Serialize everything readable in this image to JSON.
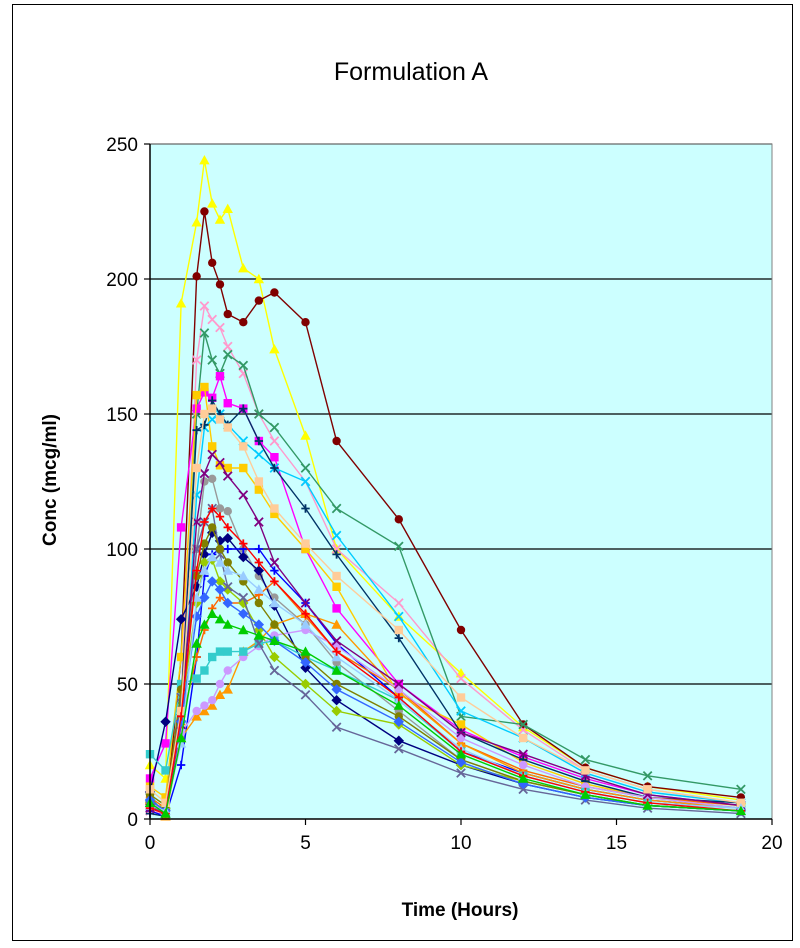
{
  "chart_data": {
    "type": "line",
    "title": "Formulation A",
    "xlabel": "Time (Hours)",
    "ylabel": "Conc (mcg/ml)",
    "xlim": [
      0,
      20
    ],
    "ylim": [
      0,
      250
    ],
    "x_ticks": [
      "0",
      "5",
      "10",
      "15",
      "20"
    ],
    "y_ticks": [
      "0",
      "50",
      "100",
      "150",
      "200",
      "250"
    ],
    "grid": "horizontal major lines",
    "plot_background": "#ccffff",
    "legend": "none",
    "series": [
      {
        "color": "#ffff00",
        "marker": "triangle",
        "x": [
          0,
          0.5,
          1,
          1.5,
          1.75,
          2,
          2.25,
          2.5,
          3,
          3.5,
          4,
          5,
          6,
          8,
          10,
          12,
          14,
          16,
          19
        ],
        "y": [
          20,
          15,
          191,
          221,
          244,
          228,
          222,
          226,
          204,
          200,
          174,
          142,
          100,
          75,
          54,
          34,
          19,
          12,
          7
        ]
      },
      {
        "color": "#800000",
        "marker": "circle",
        "x": [
          0,
          0.5,
          1,
          1.5,
          1.75,
          2,
          2.25,
          2.5,
          3,
          3.5,
          4,
          5,
          6,
          8,
          10,
          12,
          14,
          16,
          19
        ],
        "y": [
          5,
          1,
          60,
          201,
          225,
          206,
          198,
          187,
          184,
          192,
          195,
          184,
          140,
          111,
          70,
          35,
          19,
          12,
          8
        ]
      },
      {
        "color": "#ff99cc",
        "marker": "x",
        "x": [
          0,
          0.5,
          1,
          1.5,
          1.75,
          2,
          2.25,
          2.5,
          3,
          3.5,
          4,
          5,
          6,
          8,
          10,
          12,
          14,
          16,
          19
        ],
        "y": [
          3,
          2,
          45,
          170,
          190,
          185,
          182,
          175,
          165,
          150,
          140,
          125,
          100,
          80,
          52,
          33,
          18,
          11,
          6
        ]
      },
      {
        "color": "#339966",
        "marker": "x",
        "x": [
          0,
          0.5,
          1,
          1.5,
          1.75,
          2,
          2.25,
          2.5,
          3,
          3.5,
          4,
          5,
          6,
          8,
          10,
          12,
          14,
          16,
          19
        ],
        "y": [
          8,
          2,
          40,
          150,
          180,
          170,
          165,
          172,
          168,
          150,
          145,
          130,
          115,
          101,
          38,
          35,
          22,
          16,
          11
        ]
      },
      {
        "color": "#ff00ff",
        "marker": "square",
        "x": [
          0,
          0.5,
          1,
          1.5,
          1.75,
          2,
          2.25,
          2.5,
          3,
          3.5,
          4,
          5,
          6,
          8,
          10,
          12,
          14,
          16,
          19
        ],
        "y": [
          15,
          28,
          108,
          152,
          158,
          156,
          164,
          154,
          152,
          140,
          134,
          100,
          78,
          50,
          33,
          23,
          15,
          9,
          5
        ]
      },
      {
        "color": "#ffcc00",
        "marker": "square",
        "x": [
          0,
          0.5,
          1,
          1.5,
          1.75,
          2,
          2.25,
          2.5,
          3,
          3.5,
          4,
          5,
          6,
          8,
          10,
          12,
          14,
          16,
          19
        ],
        "y": [
          12,
          8,
          60,
          157,
          160,
          138,
          131,
          130,
          130,
          122,
          113,
          100,
          86,
          46,
          35,
          21,
          13,
          8,
          4
        ]
      },
      {
        "color": "#00ccff",
        "marker": "x",
        "x": [
          0,
          0.5,
          1,
          1.5,
          1.75,
          2,
          2.25,
          2.5,
          3,
          3.5,
          4,
          5,
          6,
          8,
          10,
          12,
          14,
          16,
          19
        ],
        "y": [
          6,
          3,
          30,
          120,
          145,
          148,
          150,
          146,
          140,
          135,
          130,
          125,
          105,
          75,
          40,
          30,
          17,
          10,
          6
        ]
      },
      {
        "color": "#003366",
        "marker": "plus",
        "x": [
          0,
          0.5,
          1,
          1.5,
          1.75,
          2,
          2.25,
          2.5,
          3,
          3.5,
          4,
          5,
          6,
          8,
          10,
          12,
          14,
          16,
          19
        ],
        "y": [
          2,
          1,
          43,
          144,
          146,
          155,
          150,
          146,
          152,
          140,
          130,
          115,
          98,
          67,
          32,
          22,
          14,
          8,
          6
        ]
      },
      {
        "color": "#999999",
        "marker": "circle",
        "x": [
          0,
          0.5,
          1,
          1.5,
          1.75,
          2,
          2.25,
          2.5,
          3,
          3.5,
          4,
          5,
          6,
          8,
          10,
          12,
          14,
          16,
          19
        ],
        "y": [
          4,
          2,
          30,
          100,
          125,
          126,
          115,
          114,
          100,
          90,
          82,
          72,
          58,
          40,
          22,
          14,
          9,
          5,
          3
        ]
      },
      {
        "color": "#000080",
        "marker": "diamond",
        "x": [
          0,
          0.5,
          1,
          1.5,
          1.75,
          2,
          2.25,
          2.5,
          3,
          3.5,
          4,
          5,
          6,
          8,
          10,
          12,
          14,
          16,
          19
        ],
        "y": [
          10,
          36,
          74,
          86,
          98,
          106,
          103,
          104,
          97,
          92,
          79,
          56,
          44,
          29,
          20,
          13,
          8,
          5,
          3
        ]
      },
      {
        "color": "#0000ff",
        "marker": "plus",
        "x": [
          0,
          0.5,
          1,
          1.5,
          1.75,
          2,
          2.25,
          2.5,
          3,
          3.5,
          4,
          5,
          6,
          8,
          10,
          12,
          14,
          16,
          19
        ],
        "y": [
          3,
          1,
          20,
          60,
          90,
          98,
          100,
          100,
          100,
          100,
          92,
          80,
          65,
          45,
          25,
          17,
          11,
          7,
          4
        ]
      },
      {
        "color": "#ff6600",
        "marker": "plus",
        "x": [
          0,
          0.5,
          1,
          1.5,
          1.75,
          2,
          2.25,
          2.5,
          3,
          3.5,
          4,
          5,
          6,
          8,
          10,
          12,
          14,
          16,
          19
        ],
        "y": [
          8,
          4,
          35,
          60,
          70,
          78,
          82,
          80,
          80,
          83,
          88,
          75,
          62,
          48,
          28,
          18,
          12,
          8,
          5
        ]
      },
      {
        "color": "#99cc00",
        "marker": "diamond",
        "x": [
          0,
          0.5,
          1,
          1.5,
          1.75,
          2,
          2.25,
          2.5,
          3,
          3.5,
          4,
          5,
          6,
          8,
          10,
          12,
          14,
          16,
          19
        ],
        "y": [
          6,
          4,
          40,
          80,
          95,
          96,
          88,
          85,
          80,
          70,
          60,
          50,
          40,
          35,
          20,
          14,
          9,
          5,
          3
        ]
      },
      {
        "color": "#ff9900",
        "marker": "triangle",
        "x": [
          0,
          0.5,
          1,
          1.5,
          1.75,
          2,
          2.25,
          2.5,
          3,
          3.5,
          4,
          5,
          6,
          8,
          10,
          12,
          14,
          16,
          19
        ],
        "y": [
          7,
          1,
          30,
          38,
          40,
          42,
          46,
          48,
          62,
          66,
          72,
          76,
          72,
          47,
          28,
          17,
          11,
          7,
          4
        ]
      },
      {
        "color": "#cc99ff",
        "marker": "circle",
        "x": [
          0,
          0.5,
          1,
          1.5,
          1.75,
          2,
          2.25,
          2.5,
          3,
          3.5,
          4,
          5,
          6,
          8,
          10,
          12,
          14,
          16,
          19
        ],
        "y": [
          6,
          3,
          32,
          40,
          42,
          44,
          50,
          55,
          60,
          64,
          68,
          70,
          64,
          48,
          30,
          20,
          12,
          8,
          4
        ]
      },
      {
        "color": "#33cccc",
        "marker": "square",
        "x": [
          0,
          0.5,
          1,
          1.5,
          1.75,
          2,
          2.25,
          2.5,
          3,
          3.5,
          4,
          5,
          6,
          8,
          10,
          12,
          14,
          16,
          19
        ],
        "y": [
          24,
          18,
          50,
          52,
          55,
          60,
          62,
          62,
          62,
          65,
          66,
          60,
          55,
          44,
          25,
          16,
          10,
          6,
          4
        ]
      },
      {
        "color": "#666699",
        "marker": "x",
        "x": [
          0,
          0.5,
          1,
          1.5,
          1.75,
          2,
          2.25,
          2.5,
          3,
          3.5,
          4,
          5,
          6,
          8,
          10,
          12,
          14,
          16,
          19
        ],
        "y": [
          5,
          2,
          45,
          100,
          110,
          115,
          98,
          86,
          82,
          65,
          55,
          46,
          34,
          26,
          17,
          11,
          7,
          4,
          2
        ]
      },
      {
        "color": "#808000",
        "marker": "circle",
        "x": [
          0,
          0.5,
          1,
          1.5,
          1.75,
          2,
          2.25,
          2.5,
          3,
          3.5,
          4,
          5,
          6,
          8,
          10,
          12,
          14,
          16,
          19
        ],
        "y": [
          9,
          5,
          48,
          90,
          102,
          108,
          100,
          95,
          88,
          80,
          72,
          60,
          50,
          38,
          22,
          14,
          9,
          5,
          3
        ]
      },
      {
        "color": "#800080",
        "marker": "x",
        "x": [
          0,
          0.5,
          1,
          1.5,
          1.75,
          2,
          2.25,
          2.5,
          3,
          3.5,
          4,
          5,
          6,
          8,
          10,
          12,
          14,
          16,
          19
        ],
        "y": [
          4,
          2,
          35,
          110,
          128,
          135,
          132,
          127,
          120,
          110,
          95,
          80,
          66,
          50,
          32,
          24,
          16,
          9,
          5
        ]
      },
      {
        "color": "#3366ff",
        "marker": "diamond",
        "x": [
          0,
          0.5,
          1,
          1.5,
          1.75,
          2,
          2.25,
          2.5,
          3,
          3.5,
          4,
          5,
          6,
          8,
          10,
          12,
          14,
          16,
          19
        ],
        "y": [
          7,
          3,
          36,
          75,
          82,
          88,
          85,
          80,
          76,
          72,
          66,
          58,
          48,
          36,
          21,
          13,
          8,
          5,
          3
        ]
      },
      {
        "color": "#ffcc99",
        "marker": "square",
        "x": [
          0,
          0.5,
          1,
          1.5,
          1.75,
          2,
          2.25,
          2.5,
          3,
          3.5,
          4,
          5,
          6,
          8,
          10,
          12,
          14,
          16,
          19
        ],
        "y": [
          11,
          6,
          40,
          130,
          150,
          152,
          148,
          145,
          138,
          125,
          115,
          102,
          90,
          70,
          45,
          30,
          18,
          11,
          6
        ]
      },
      {
        "color": "#99ccff",
        "marker": "triangle",
        "x": [
          0,
          0.5,
          1,
          1.5,
          1.75,
          2,
          2.25,
          2.5,
          3,
          3.5,
          4,
          5,
          6,
          8,
          10,
          12,
          14,
          16,
          19
        ],
        "y": [
          5,
          3,
          28,
          82,
          92,
          97,
          95,
          92,
          90,
          85,
          80,
          72,
          60,
          44,
          26,
          16,
          10,
          6,
          4
        ]
      },
      {
        "color": "#ff0000",
        "marker": "plus",
        "x": [
          0,
          0.5,
          1,
          1.5,
          1.75,
          2,
          2.25,
          2.5,
          3,
          3.5,
          4,
          5,
          6,
          8,
          10,
          12,
          14,
          16,
          19
        ],
        "y": [
          4,
          2,
          38,
          92,
          110,
          115,
          112,
          108,
          102,
          95,
          88,
          76,
          62,
          45,
          25,
          16,
          10,
          6,
          3
        ]
      },
      {
        "color": "#00cc00",
        "marker": "triangle",
        "x": [
          0,
          0.5,
          1,
          1.5,
          1.75,
          2,
          2.25,
          2.5,
          3,
          3.5,
          4,
          5,
          6,
          8,
          10,
          12,
          14,
          16,
          19
        ],
        "y": [
          6,
          2,
          30,
          65,
          72,
          76,
          74,
          72,
          70,
          68,
          66,
          62,
          55,
          42,
          24,
          15,
          9,
          5,
          3
        ]
      }
    ]
  }
}
